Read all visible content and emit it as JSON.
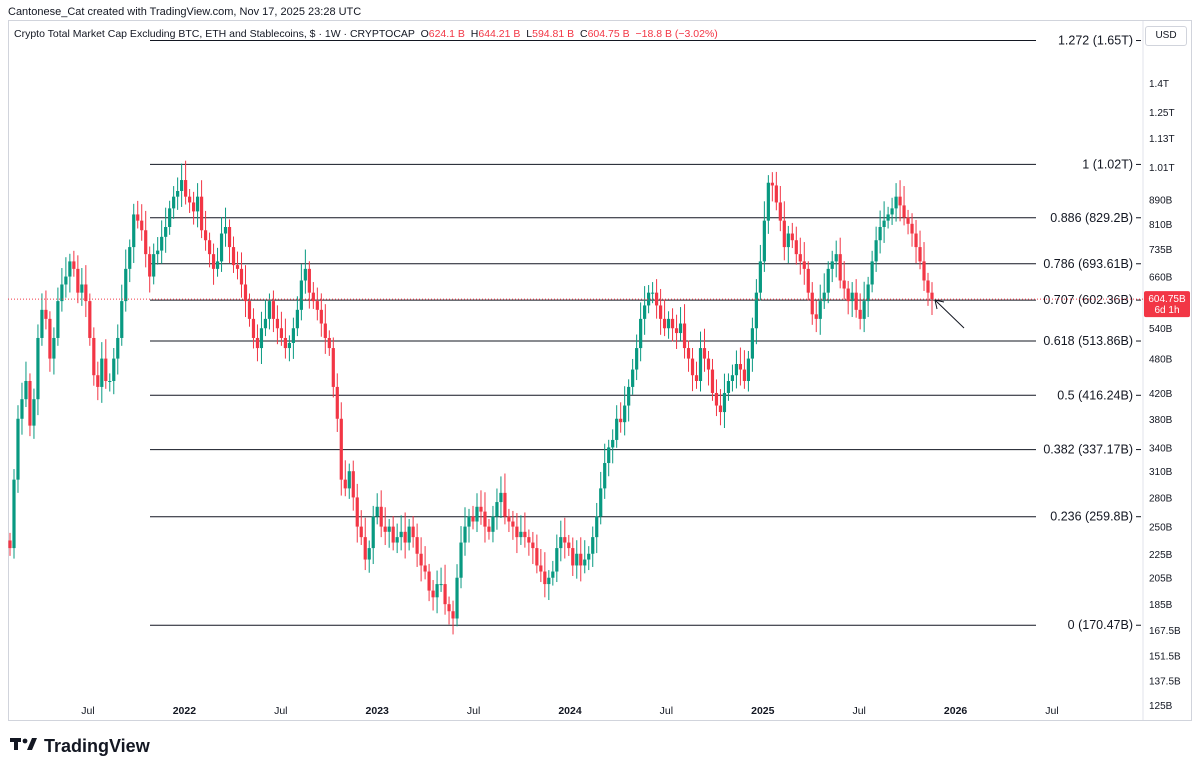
{
  "header": {
    "created_by": "Cantonese_Cat created with TradingView.com, Nov 17, 2025 23:28 UTC",
    "symbol_line": "Crypto Total Market Cap Excluding BTC, ETH and Stablecoins, $ · 1W · CRYPTOCAP",
    "ohlc": {
      "o_label": "O",
      "o": "624.1 B",
      "h_label": "H",
      "h": "644.21 B",
      "l_label": "L",
      "l": "594.81 B",
      "c_label": "C",
      "c": "604.75 B",
      "change": "−18.8 B (−3.02%)"
    },
    "currency_button": "USD"
  },
  "brand": {
    "name": "TradingView",
    "logo_icon": "tradingview-logo-icon"
  },
  "colors": {
    "up": "#089981",
    "down": "#f23645",
    "fib_line": "#131722",
    "price_line": "#f23645"
  },
  "chart_data": {
    "type": "candlestick",
    "title": "Crypto Total Market Cap Excluding BTC, ETH and Stablecoins",
    "timeframe": "1W",
    "y_scale": "log",
    "y_range_billion": [
      118,
      1780
    ],
    "x_ticks": [
      "Jul",
      "2022",
      "Jul",
      "2023",
      "Jul",
      "2024",
      "Jul",
      "2025",
      "Jul",
      "2026",
      "Jul"
    ],
    "y_ticks": [
      "1.4T",
      "1.25T",
      "1.13T",
      "1.01T",
      "890B",
      "810B",
      "735B",
      "660B",
      "540B",
      "480B",
      "420B",
      "380B",
      "340B",
      "310B",
      "280B",
      "250B",
      "225B",
      "205B",
      "185B",
      "167.5B",
      "151.5B",
      "137.5B",
      "125B"
    ],
    "y_tick_values_billion": [
      1400,
      1250,
      1130,
      1010,
      890,
      810,
      735,
      660,
      540,
      480,
      420,
      380,
      340,
      310,
      280,
      250,
      225,
      205,
      185,
      167.5,
      151.5,
      137.5,
      125
    ],
    "last_price": {
      "label": "604.75B",
      "countdown": "6d 1h",
      "value_billion": 604.75
    },
    "fib_levels": [
      {
        "label": "1.272 (1.65T)",
        "value_billion": 1650
      },
      {
        "label": "1 (1.02T)",
        "value_billion": 1020
      },
      {
        "label": "0.886 (829.2B)",
        "value_billion": 829.2
      },
      {
        "label": "0.786 (693.61B)",
        "value_billion": 693.61
      },
      {
        "label": "0.707 (602.36B)",
        "value_billion": 602.36
      },
      {
        "label": "0.618 (513.86B)",
        "value_billion": 513.86
      },
      {
        "label": "0.5 (416.24B)",
        "value_billion": 416.24
      },
      {
        "label": "0.382 (337.17B)",
        "value_billion": 337.17
      },
      {
        "label": "0.236 (259.8B)",
        "value_billion": 259.8
      },
      {
        "label": "0 (170.47B)",
        "value_billion": 170.47
      }
    ],
    "closes_billion": [
      230,
      300,
      380,
      410,
      440,
      370,
      410,
      520,
      580,
      560,
      480,
      520,
      600,
      640,
      660,
      700,
      680,
      620,
      640,
      600,
      520,
      450,
      430,
      480,
      440,
      440,
      480,
      520,
      600,
      680,
      740,
      840,
      820,
      790,
      720,
      660,
      720,
      730,
      770,
      800,
      860,
      900,
      920,
      960,
      900,
      880,
      850,
      900,
      790,
      760,
      720,
      680,
      700,
      780,
      800,
      740,
      690,
      680,
      640,
      600,
      560,
      520,
      500,
      540,
      560,
      600,
      560,
      540,
      520,
      500,
      510,
      540,
      580,
      650,
      680,
      620,
      600,
      580,
      550,
      520,
      500,
      430,
      380,
      300,
      290,
      310,
      280,
      250,
      240,
      220,
      230,
      260,
      270,
      250,
      245,
      250,
      235,
      240,
      245,
      235,
      250,
      240,
      225,
      215,
      210,
      195,
      190,
      200,
      200,
      185,
      180,
      175,
      205,
      235,
      250,
      260,
      255,
      270,
      265,
      250,
      245,
      260,
      275,
      285,
      260,
      255,
      250,
      240,
      245,
      240,
      235,
      230,
      215,
      210,
      200,
      205,
      210,
      230,
      240,
      235,
      230,
      215,
      225,
      215,
      220,
      225,
      240,
      260,
      290,
      320,
      340,
      350,
      380,
      375,
      400,
      430,
      460,
      500,
      560,
      590,
      620,
      620,
      590,
      560,
      540,
      560,
      540,
      530,
      550,
      500,
      480,
      450,
      440,
      500,
      480,
      460,
      420,
      400,
      390,
      420,
      440,
      450,
      470,
      460,
      440,
      480,
      540,
      620,
      700,
      820,
      950,
      940,
      880,
      820,
      740,
      780,
      760,
      720,
      700,
      680,
      620,
      570,
      560,
      600,
      620,
      680,
      700,
      720,
      650,
      630,
      600,
      620,
      580,
      560,
      600,
      640,
      700,
      760,
      800,
      820,
      840,
      860,
      900,
      870,
      830,
      810,
      780,
      740,
      700,
      650,
      620,
      604.75
    ]
  }
}
